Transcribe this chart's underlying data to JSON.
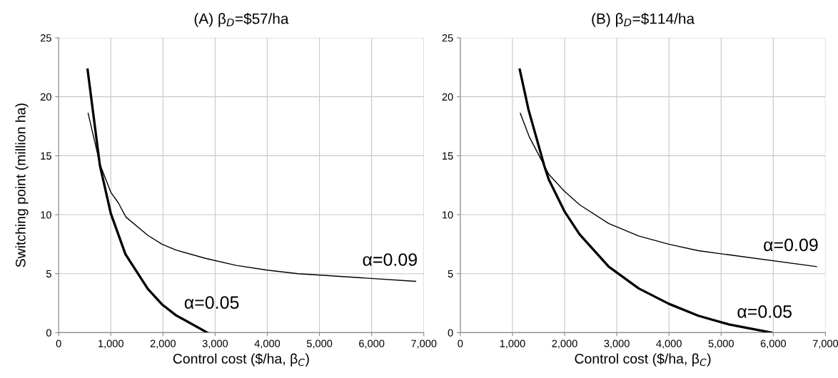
{
  "chart_data": [
    {
      "type": "line",
      "title": "(A) β$_{D}$=$57/ha",
      "xlabel": "Control cost ($/ha, β$_{C}$)",
      "ylabel": "Switching point (million ha)",
      "series": [
        {
          "name": "α=0.05",
          "color": "#000000",
          "x": [
            555,
            790,
            1000,
            1280,
            1710,
            1980,
            2250,
            2850
          ],
          "values": [
            22.3,
            14.2,
            10.1,
            6.65,
            3.7,
            2.4,
            1.47,
            0
          ]
        },
        {
          "name": "α=0.09",
          "color": "#000000",
          "x": [
            565,
            790,
            1000,
            1145,
            1290,
            1710,
            1980,
            2250,
            2815,
            3405,
            4000,
            4585,
            5125,
            6845
          ],
          "values": [
            18.6,
            14.3,
            11.9,
            11.0,
            9.8,
            8.25,
            7.5,
            7.0,
            6.3,
            5.7,
            5.3,
            5.0,
            4.85,
            4.35
          ]
        }
      ],
      "xlim": [
        0,
        7000
      ],
      "xticks": [
        0,
        {
          "value": 1000,
          "label": "1,000"
        },
        {
          "value": 2000,
          "label": "2,000"
        },
        {
          "value": 3000,
          "label": "3,000"
        },
        {
          "value": 4000,
          "label": "4,000"
        },
        {
          "value": 5000,
          "label": "5,000"
        },
        {
          "value": 6000,
          "label": "6,000"
        },
        {
          "value": 7000,
          "label": "7,000"
        }
      ],
      "ylim": [
        0,
        25
      ],
      "yticks": [
        0,
        5,
        10,
        15,
        20,
        25
      ],
      "grid": true,
      "marker": "none",
      "line_style": "solid"
    },
    {
      "type": "line",
      "title": "(B) β$_{D}$=$114/ha",
      "xlabel": "Control cost ($/ha, β$_{C}$)",
      "series": [
        {
          "name": "α=0.05",
          "color": "#000000",
          "x": [
            1140,
            1308,
            1613,
            1695,
            1995,
            2285,
            2845,
            3420,
            3995,
            4565,
            5150,
            5965
          ],
          "values": [
            22.3,
            18.9,
            14.1,
            13.0,
            10.3,
            8.35,
            5.6,
            3.75,
            2.45,
            1.43,
            0.7,
            0
          ]
        },
        {
          "name": "α=0.09",
          "color": "#000000",
          "x": [
            1150,
            1323,
            1700,
            1995,
            2285,
            2845,
            3420,
            3995,
            4565,
            5150,
            6830
          ],
          "values": [
            18.6,
            16.6,
            13.4,
            12.0,
            10.85,
            9.25,
            8.2,
            7.5,
            6.95,
            6.6,
            5.6
          ]
        }
      ],
      "xlim": [
        0,
        7000
      ],
      "xticks": [
        0,
        {
          "value": 1000,
          "label": "1,000"
        },
        {
          "value": 2000,
          "label": "2,000"
        },
        {
          "value": 3000,
          "label": "3,000"
        },
        {
          "value": 4000,
          "label": "4,000"
        },
        {
          "value": 5000,
          "label": "5,000"
        },
        {
          "value": 6000,
          "label": "6,000"
        },
        {
          "value": 7000,
          "label": "7,000"
        }
      ],
      "ylim": [
        0,
        25
      ],
      "yticks": [
        0,
        5,
        10,
        15,
        20,
        25
      ],
      "grid": true,
      "marker": "none",
      "line_style": "solid"
    }
  ]
}
